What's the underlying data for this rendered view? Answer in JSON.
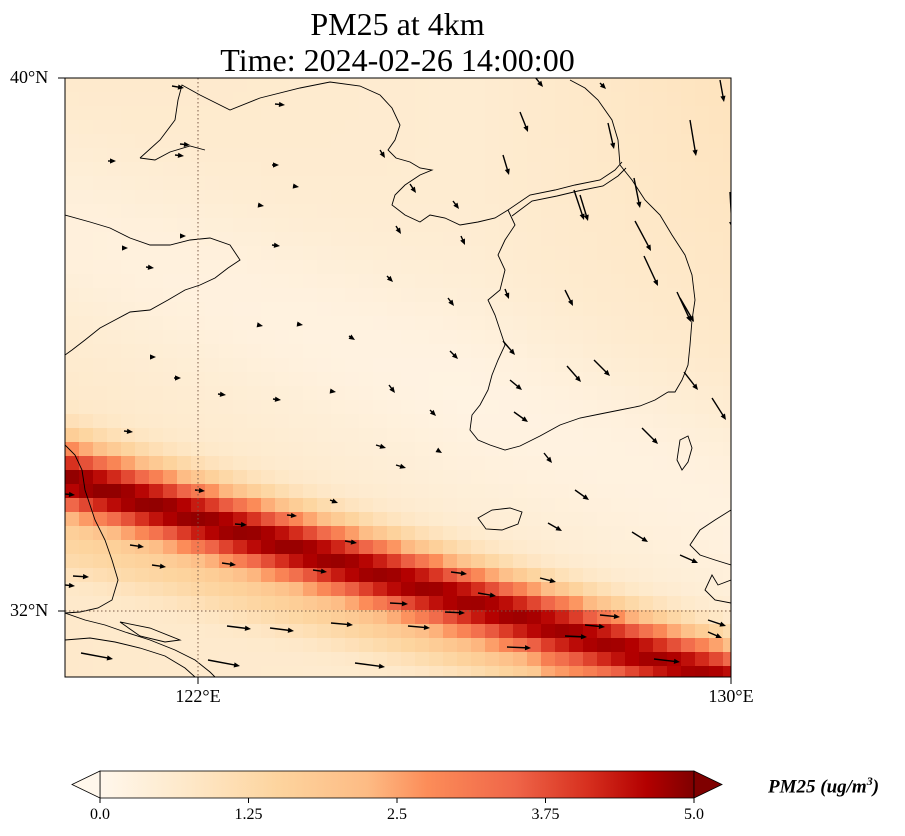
{
  "title": {
    "line1": "PM25 at 4km",
    "line2": "Time: 2024-02-26 14:00:00"
  },
  "axes": {
    "lat_labels": [
      "40°N",
      "32°N"
    ],
    "lon_labels": [
      "122°E",
      "130°E"
    ],
    "lat_range": [
      31,
      40
    ],
    "lon_range": [
      120,
      130
    ],
    "gridlines": {
      "lat": 32,
      "lon": 122,
      "style": "dotted"
    }
  },
  "colorbar": {
    "ticks": [
      "0.0",
      "1.25",
      "2.5",
      "3.75",
      "5.0"
    ],
    "range": [
      0,
      5
    ],
    "colormap": "OrRd",
    "extend": "both",
    "label_prefix": "PM25 (ug/m",
    "label_sup": "3",
    "label_suffix": ")"
  },
  "colors": {
    "low": "#fff7ec",
    "mid": "#fdbb84",
    "high": "#d7301f",
    "max": "#7f0000",
    "coastline": "#000000",
    "gridline": "#7a5a48"
  },
  "field": {
    "description_band": "high concentration band running WNW-ESE across southern portion",
    "band_peak_value": 4.2,
    "background_value": 0.8,
    "northeast_value": 1.3
  }
}
